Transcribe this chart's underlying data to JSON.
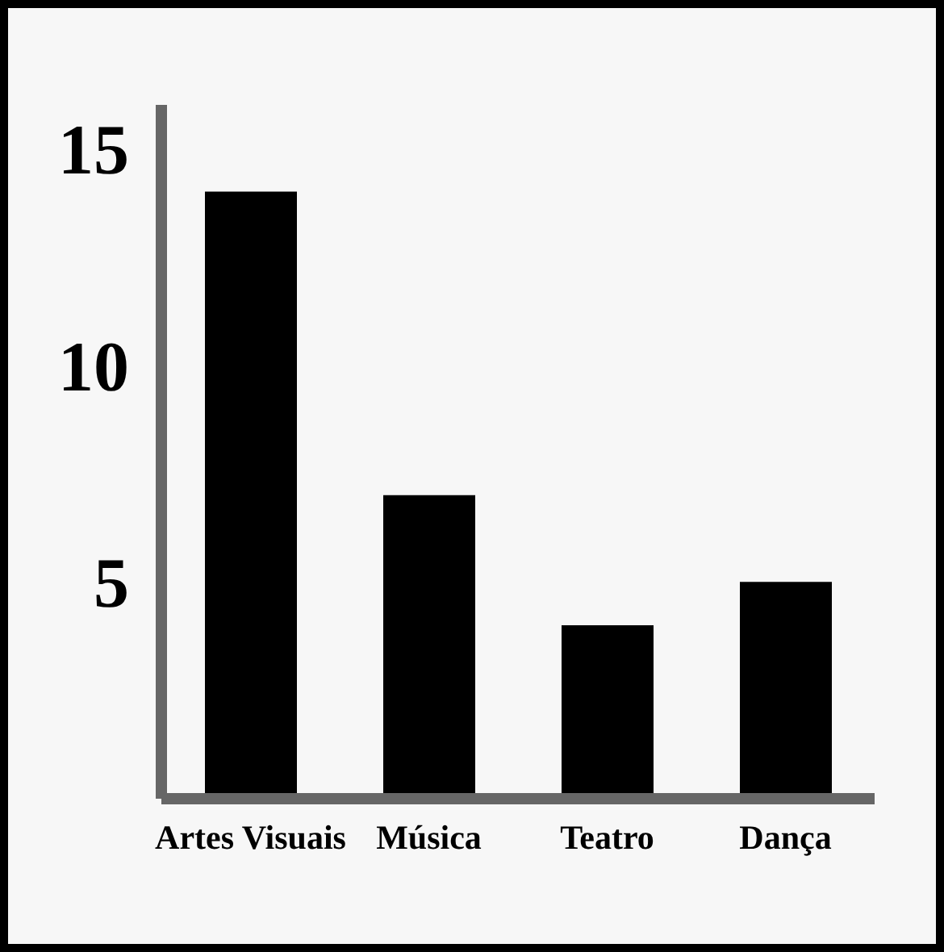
{
  "chart_data": {
    "type": "bar",
    "categories": [
      "Artes Visuais",
      "Música",
      "Teatro",
      "Dança"
    ],
    "values": [
      14,
      7,
      4,
      5
    ],
    "color": "#000000",
    "ylim": [
      0,
      16
    ],
    "yticks": [
      5,
      10,
      15
    ],
    "grid": false,
    "legend": false
  }
}
